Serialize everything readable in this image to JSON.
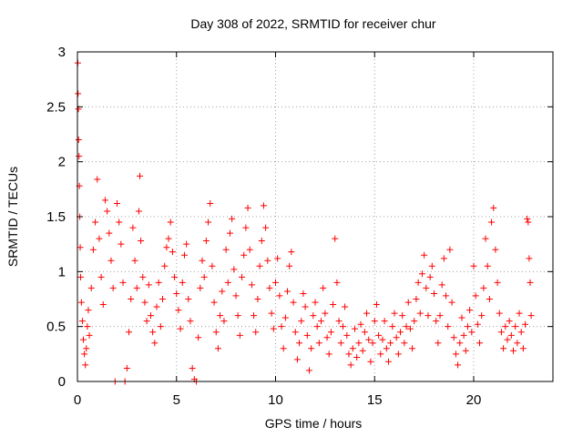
{
  "chart_data": {
    "type": "scatter",
    "title": "Day 308 of 2022, SRMTID for receiver chur",
    "xlabel": "GPS time / hours",
    "ylabel": "SRMTID / TECUs",
    "xlim": [
      0,
      24
    ],
    "ylim": [
      0,
      3
    ],
    "xticks": [
      0,
      5,
      10,
      15,
      20
    ],
    "yticks": [
      0,
      0.5,
      1,
      1.5,
      2,
      2.5,
      3
    ],
    "xtick_labels": [
      "0",
      "5",
      "10",
      "15",
      "20"
    ],
    "ytick_labels": [
      "0",
      "0.5",
      "1",
      "1.5",
      "2",
      "2.5",
      "3"
    ],
    "grid": true,
    "marker": "+",
    "color": "#ff0000",
    "series": [
      {
        "name": "SRMTID",
        "points": [
          [
            0.02,
            2.9
          ],
          [
            0.03,
            2.62
          ],
          [
            0.05,
            2.48
          ],
          [
            0.06,
            2.2
          ],
          [
            0.08,
            2.05
          ],
          [
            0.1,
            1.78
          ],
          [
            0.12,
            1.5
          ],
          [
            0.14,
            1.22
          ],
          [
            0.16,
            0.95
          ],
          [
            0.2,
            0.72
          ],
          [
            0.25,
            0.55
          ],
          [
            0.3,
            0.38
          ],
          [
            0.35,
            0.25
          ],
          [
            0.4,
            0.15
          ],
          [
            0.45,
            0.3
          ],
          [
            0.5,
            0.5
          ],
          [
            0.55,
            0.65
          ],
          [
            0.6,
            0.42
          ],
          [
            0.7,
            0.85
          ],
          [
            0.8,
            1.2
          ],
          [
            0.9,
            1.45
          ],
          [
            1.0,
            1.84
          ],
          [
            1.1,
            1.3
          ],
          [
            1.2,
            0.95
          ],
          [
            1.3,
            0.7
          ],
          [
            1.4,
            1.65
          ],
          [
            1.5,
            1.55
          ],
          [
            1.6,
            1.35
          ],
          [
            1.7,
            1.1
          ],
          [
            1.8,
            0.85
          ],
          [
            1.9,
            0.0
          ],
          [
            2.0,
            1.62
          ],
          [
            2.1,
            1.45
          ],
          [
            2.2,
            1.25
          ],
          [
            2.3,
            0.9
          ],
          [
            2.4,
            0.0
          ],
          [
            2.5,
            0.12
          ],
          [
            2.6,
            0.45
          ],
          [
            2.7,
            0.75
          ],
          [
            2.8,
            1.4
          ],
          [
            2.9,
            1.1
          ],
          [
            3.0,
            0.85
          ],
          [
            3.1,
            1.55
          ],
          [
            3.15,
            1.87
          ],
          [
            3.2,
            1.28
          ],
          [
            3.3,
            0.95
          ],
          [
            3.4,
            0.72
          ],
          [
            3.5,
            0.55
          ],
          [
            3.6,
            0.88
          ],
          [
            3.7,
            0.6
          ],
          [
            3.8,
            0.45
          ],
          [
            3.9,
            0.35
          ],
          [
            4.0,
            0.68
          ],
          [
            4.1,
            0.9
          ],
          [
            4.2,
            0.5
          ],
          [
            4.3,
            0.75
          ],
          [
            4.4,
            1.05
          ],
          [
            4.5,
            1.22
          ],
          [
            4.6,
            1.3
          ],
          [
            4.7,
            1.45
          ],
          [
            4.8,
            1.18
          ],
          [
            4.9,
            0.95
          ],
          [
            5.0,
            0.8
          ],
          [
            5.1,
            0.65
          ],
          [
            5.2,
            0.48
          ],
          [
            5.3,
            0.9
          ],
          [
            5.4,
            1.15
          ],
          [
            5.5,
            1.25
          ],
          [
            5.6,
            0.75
          ],
          [
            5.7,
            0.55
          ],
          [
            5.8,
            0.12
          ],
          [
            5.9,
            0.02
          ],
          [
            6.0,
            0.0
          ],
          [
            6.1,
            0.4
          ],
          [
            6.2,
            0.85
          ],
          [
            6.3,
            1.1
          ],
          [
            6.4,
            0.95
          ],
          [
            6.5,
            1.28
          ],
          [
            6.6,
            1.45
          ],
          [
            6.7,
            1.62
          ],
          [
            6.8,
            1.05
          ],
          [
            6.9,
            0.72
          ],
          [
            7.0,
            0.45
          ],
          [
            7.1,
            0.3
          ],
          [
            7.2,
            0.6
          ],
          [
            7.3,
            0.82
          ],
          [
            7.4,
            0.55
          ],
          [
            7.5,
            1.2
          ],
          [
            7.6,
            0.9
          ],
          [
            7.7,
            1.35
          ],
          [
            7.8,
            1.48
          ],
          [
            7.9,
            1.02
          ],
          [
            8.0,
            0.78
          ],
          [
            8.1,
            0.6
          ],
          [
            8.2,
            0.42
          ],
          [
            8.3,
            0.95
          ],
          [
            8.4,
            1.15
          ],
          [
            8.5,
            1.4
          ],
          [
            8.6,
            1.58
          ],
          [
            8.7,
            1.2
          ],
          [
            8.8,
            0.88
          ],
          [
            8.9,
            0.6
          ],
          [
            9.0,
            0.45
          ],
          [
            9.1,
            0.75
          ],
          [
            9.2,
            1.05
          ],
          [
            9.3,
            1.28
          ],
          [
            9.4,
            1.6
          ],
          [
            9.5,
            1.4
          ],
          [
            9.6,
            1.1
          ],
          [
            9.7,
            0.85
          ],
          [
            9.8,
            0.62
          ],
          [
            9.9,
            0.48
          ],
          [
            10.0,
            0.9
          ],
          [
            10.1,
            1.12
          ],
          [
            10.2,
            0.78
          ],
          [
            10.3,
            0.5
          ],
          [
            10.4,
            0.3
          ],
          [
            10.5,
            0.58
          ],
          [
            10.6,
            0.82
          ],
          [
            10.7,
            1.05
          ],
          [
            10.8,
            1.18
          ],
          [
            10.9,
            0.72
          ],
          [
            11.0,
            0.45
          ],
          [
            11.1,
            0.2
          ],
          [
            11.2,
            0.35
          ],
          [
            11.3,
            0.55
          ],
          [
            11.4,
            0.8
          ],
          [
            11.5,
            0.68
          ],
          [
            11.6,
            0.42
          ],
          [
            11.7,
            0.1
          ],
          [
            11.8,
            0.3
          ],
          [
            11.9,
            0.6
          ],
          [
            12.0,
            0.72
          ],
          [
            12.1,
            0.5
          ],
          [
            12.2,
            0.35
          ],
          [
            12.3,
            0.55
          ],
          [
            12.4,
            0.85
          ],
          [
            12.5,
            0.62
          ],
          [
            12.6,
            0.4
          ],
          [
            12.7,
            0.25
          ],
          [
            12.8,
            0.45
          ],
          [
            12.9,
            0.7
          ],
          [
            13.0,
            1.3
          ],
          [
            13.1,
            0.9
          ],
          [
            13.2,
            0.55
          ],
          [
            13.3,
            0.35
          ],
          [
            13.4,
            0.5
          ],
          [
            13.5,
            0.68
          ],
          [
            13.6,
            0.42
          ],
          [
            13.7,
            0.25
          ],
          [
            13.8,
            0.15
          ],
          [
            13.9,
            0.3
          ],
          [
            14.0,
            0.48
          ],
          [
            14.1,
            0.22
          ],
          [
            14.2,
            0.35
          ],
          [
            14.3,
            0.52
          ],
          [
            14.4,
            0.28
          ],
          [
            14.5,
            0.45
          ],
          [
            14.6,
            0.62
          ],
          [
            14.7,
            0.38
          ],
          [
            14.8,
            0.18
          ],
          [
            14.9,
            0.35
          ],
          [
            15.0,
            0.55
          ],
          [
            15.1,
            0.7
          ],
          [
            15.2,
            0.42
          ],
          [
            15.3,
            0.25
          ],
          [
            15.4,
            0.38
          ],
          [
            15.5,
            0.55
          ],
          [
            15.6,
            0.3
          ],
          [
            15.7,
            0.18
          ],
          [
            15.8,
            0.35
          ],
          [
            15.9,
            0.5
          ],
          [
            16.0,
            0.62
          ],
          [
            16.1,
            0.4
          ],
          [
            16.2,
            0.25
          ],
          [
            16.3,
            0.45
          ],
          [
            16.4,
            0.6
          ],
          [
            16.5,
            0.35
          ],
          [
            16.6,
            0.5
          ],
          [
            16.7,
            0.72
          ],
          [
            16.8,
            0.48
          ],
          [
            16.9,
            0.3
          ],
          [
            17.0,
            0.55
          ],
          [
            17.1,
            0.75
          ],
          [
            17.2,
            0.9
          ],
          [
            17.3,
            0.62
          ],
          [
            17.4,
            0.98
          ],
          [
            17.5,
            1.15
          ],
          [
            17.6,
            0.85
          ],
          [
            17.7,
            0.6
          ],
          [
            17.8,
            0.95
          ],
          [
            17.9,
            1.05
          ],
          [
            18.0,
            0.8
          ],
          [
            18.1,
            0.55
          ],
          [
            18.2,
            0.35
          ],
          [
            18.3,
            0.6
          ],
          [
            18.4,
            0.88
          ],
          [
            18.5,
            1.12
          ],
          [
            18.6,
            0.78
          ],
          [
            18.7,
            0.5
          ],
          [
            18.8,
            1.2
          ],
          [
            18.9,
            0.72
          ],
          [
            19.0,
            0.4
          ],
          [
            19.1,
            0.25
          ],
          [
            19.2,
            0.15
          ],
          [
            19.3,
            0.35
          ],
          [
            19.4,
            0.58
          ],
          [
            19.5,
            0.42
          ],
          [
            19.6,
            0.28
          ],
          [
            19.7,
            0.5
          ],
          [
            19.8,
            0.65
          ],
          [
            19.9,
            0.45
          ],
          [
            20.0,
            1.05
          ],
          [
            20.1,
            0.78
          ],
          [
            20.2,
            0.52
          ],
          [
            20.3,
            0.35
          ],
          [
            20.4,
            0.6
          ],
          [
            20.5,
            0.85
          ],
          [
            20.6,
            1.3
          ],
          [
            20.7,
            1.05
          ],
          [
            20.8,
            0.75
          ],
          [
            20.9,
            1.45
          ],
          [
            21.0,
            1.58
          ],
          [
            21.1,
            1.2
          ],
          [
            21.2,
            0.9
          ],
          [
            21.3,
            0.62
          ],
          [
            21.4,
            0.45
          ],
          [
            21.5,
            0.3
          ],
          [
            21.6,
            0.5
          ],
          [
            21.7,
            0.38
          ],
          [
            21.8,
            0.55
          ],
          [
            21.9,
            0.42
          ],
          [
            22.0,
            0.28
          ],
          [
            22.1,
            0.5
          ],
          [
            22.2,
            0.35
          ],
          [
            22.3,
            0.62
          ],
          [
            22.4,
            0.45
          ],
          [
            22.5,
            0.3
          ],
          [
            22.6,
            0.52
          ],
          [
            22.7,
            1.48
          ],
          [
            22.75,
            1.45
          ],
          [
            22.8,
            1.12
          ],
          [
            22.85,
            0.9
          ],
          [
            22.9,
            0.6
          ]
        ]
      }
    ]
  }
}
